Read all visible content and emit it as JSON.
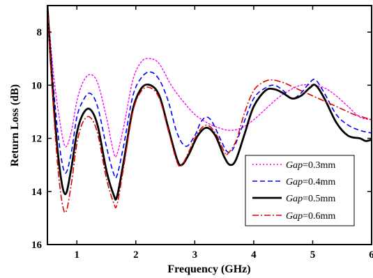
{
  "chart_data": {
    "type": "line",
    "title": "",
    "xlabel": "Frequency (GHz)",
    "ylabel": "Return Loss (dB)",
    "xlim": [
      0.5,
      6
    ],
    "ylim": [
      16,
      7
    ],
    "y_inverted": true,
    "xticks": [
      1,
      2,
      3,
      4,
      5,
      6
    ],
    "yticks": [
      8,
      10,
      12,
      14,
      16
    ],
    "grid": false,
    "legend_position": "bottom-right",
    "legend": [
      {
        "prefix": "Gap",
        "suffix": "=0.3mm"
      },
      {
        "prefix": "Gap",
        "suffix": "=0.4mm"
      },
      {
        "prefix": "Gap",
        "suffix": "=0.5mm"
      },
      {
        "prefix": "Gap",
        "suffix": "=0.6mm"
      }
    ],
    "series": [
      {
        "name": "Gap=0.3mm",
        "color": "#ff00ff",
        "dash": "dotted",
        "points": [
          [
            0.5,
            7.0
          ],
          [
            0.6,
            9.5
          ],
          [
            0.7,
            11.2
          ],
          [
            0.8,
            12.3
          ],
          [
            0.9,
            11.8
          ],
          [
            1.0,
            10.6
          ],
          [
            1.1,
            9.9
          ],
          [
            1.22,
            9.6
          ],
          [
            1.35,
            9.9
          ],
          [
            1.5,
            11.2
          ],
          [
            1.62,
            12.5
          ],
          [
            1.68,
            12.6
          ],
          [
            1.8,
            11.5
          ],
          [
            1.95,
            9.8
          ],
          [
            2.1,
            9.1
          ],
          [
            2.25,
            9.0
          ],
          [
            2.4,
            9.2
          ],
          [
            2.6,
            10.0
          ],
          [
            2.8,
            10.6
          ],
          [
            3.0,
            11.1
          ],
          [
            3.2,
            11.4
          ],
          [
            3.4,
            11.6
          ],
          [
            3.6,
            11.7
          ],
          [
            3.8,
            11.6
          ],
          [
            4.0,
            11.3
          ],
          [
            4.2,
            10.9
          ],
          [
            4.4,
            10.5
          ],
          [
            4.6,
            10.2
          ],
          [
            4.8,
            10.0
          ],
          [
            5.0,
            10.0
          ],
          [
            5.2,
            10.1
          ],
          [
            5.4,
            10.4
          ],
          [
            5.6,
            10.8
          ],
          [
            5.8,
            11.2
          ],
          [
            6.0,
            11.3
          ]
        ]
      },
      {
        "name": "Gap=0.4mm",
        "color": "#0000ff",
        "dash": "dashed",
        "points": [
          [
            0.5,
            7.0
          ],
          [
            0.6,
            10.0
          ],
          [
            0.7,
            12.2
          ],
          [
            0.8,
            13.3
          ],
          [
            0.9,
            12.6
          ],
          [
            1.0,
            11.2
          ],
          [
            1.1,
            10.6
          ],
          [
            1.22,
            10.3
          ],
          [
            1.35,
            10.8
          ],
          [
            1.5,
            12.3
          ],
          [
            1.62,
            13.3
          ],
          [
            1.68,
            13.4
          ],
          [
            1.8,
            12.2
          ],
          [
            1.95,
            10.4
          ],
          [
            2.1,
            9.7
          ],
          [
            2.25,
            9.5
          ],
          [
            2.4,
            9.8
          ],
          [
            2.55,
            10.6
          ],
          [
            2.7,
            11.8
          ],
          [
            2.85,
            12.3
          ],
          [
            3.0,
            11.9
          ],
          [
            3.1,
            11.4
          ],
          [
            3.2,
            11.2
          ],
          [
            3.3,
            11.4
          ],
          [
            3.45,
            12.1
          ],
          [
            3.55,
            12.5
          ],
          [
            3.65,
            12.4
          ],
          [
            3.8,
            11.6
          ],
          [
            4.0,
            10.5
          ],
          [
            4.2,
            10.1
          ],
          [
            4.35,
            10.0
          ],
          [
            4.5,
            10.2
          ],
          [
            4.65,
            10.5
          ],
          [
            4.8,
            10.3
          ],
          [
            4.95,
            9.9
          ],
          [
            5.05,
            9.8
          ],
          [
            5.2,
            10.3
          ],
          [
            5.4,
            11.1
          ],
          [
            5.6,
            11.5
          ],
          [
            5.8,
            11.7
          ],
          [
            6.0,
            11.8
          ]
        ]
      },
      {
        "name": "Gap=0.5mm",
        "color": "#000000",
        "dash": "solid",
        "points": [
          [
            0.5,
            7.0
          ],
          [
            0.6,
            10.5
          ],
          [
            0.7,
            13.0
          ],
          [
            0.8,
            14.1
          ],
          [
            0.9,
            13.2
          ],
          [
            1.0,
            11.8
          ],
          [
            1.1,
            11.1
          ],
          [
            1.22,
            10.9
          ],
          [
            1.35,
            11.5
          ],
          [
            1.5,
            13.2
          ],
          [
            1.62,
            14.1
          ],
          [
            1.68,
            14.2
          ],
          [
            1.8,
            12.8
          ],
          [
            1.95,
            10.9
          ],
          [
            2.1,
            10.1
          ],
          [
            2.25,
            10.0
          ],
          [
            2.4,
            10.4
          ],
          [
            2.55,
            11.6
          ],
          [
            2.7,
            12.8
          ],
          [
            2.78,
            13.0
          ],
          [
            2.9,
            12.6
          ],
          [
            3.05,
            11.9
          ],
          [
            3.2,
            11.6
          ],
          [
            3.35,
            11.9
          ],
          [
            3.5,
            12.7
          ],
          [
            3.6,
            13.0
          ],
          [
            3.7,
            12.8
          ],
          [
            3.85,
            11.8
          ],
          [
            4.0,
            10.8
          ],
          [
            4.2,
            10.2
          ],
          [
            4.35,
            10.15
          ],
          [
            4.5,
            10.3
          ],
          [
            4.65,
            10.5
          ],
          [
            4.8,
            10.4
          ],
          [
            4.95,
            10.1
          ],
          [
            5.05,
            10.0
          ],
          [
            5.2,
            10.5
          ],
          [
            5.4,
            11.4
          ],
          [
            5.6,
            11.9
          ],
          [
            5.8,
            12.0
          ],
          [
            5.9,
            12.1
          ],
          [
            6.0,
            12.05
          ]
        ]
      },
      {
        "name": "Gap=0.6mm",
        "color": "#e00000",
        "dash": "dashdot",
        "points": [
          [
            0.5,
            7.0
          ],
          [
            0.6,
            10.8
          ],
          [
            0.7,
            13.6
          ],
          [
            0.8,
            14.8
          ],
          [
            0.9,
            13.8
          ],
          [
            1.0,
            12.2
          ],
          [
            1.1,
            11.4
          ],
          [
            1.22,
            11.2
          ],
          [
            1.35,
            11.8
          ],
          [
            1.5,
            13.5
          ],
          [
            1.62,
            14.4
          ],
          [
            1.68,
            14.5
          ],
          [
            1.8,
            13.0
          ],
          [
            1.95,
            11.0
          ],
          [
            2.1,
            10.2
          ],
          [
            2.25,
            10.1
          ],
          [
            2.4,
            10.5
          ],
          [
            2.55,
            11.7
          ],
          [
            2.7,
            12.9
          ],
          [
            2.78,
            13.0
          ],
          [
            2.9,
            12.5
          ],
          [
            3.05,
            11.8
          ],
          [
            3.2,
            11.5
          ],
          [
            3.35,
            11.8
          ],
          [
            3.5,
            12.5
          ],
          [
            3.55,
            12.6
          ],
          [
            3.7,
            12.1
          ],
          [
            3.85,
            11.0
          ],
          [
            4.0,
            10.2
          ],
          [
            4.15,
            9.9
          ],
          [
            4.3,
            9.8
          ],
          [
            4.5,
            9.9
          ],
          [
            4.7,
            10.1
          ],
          [
            4.9,
            10.3
          ],
          [
            5.1,
            10.5
          ],
          [
            5.3,
            10.7
          ],
          [
            5.5,
            10.9
          ],
          [
            5.7,
            11.1
          ],
          [
            5.85,
            11.2
          ],
          [
            6.0,
            11.3
          ]
        ]
      }
    ]
  }
}
